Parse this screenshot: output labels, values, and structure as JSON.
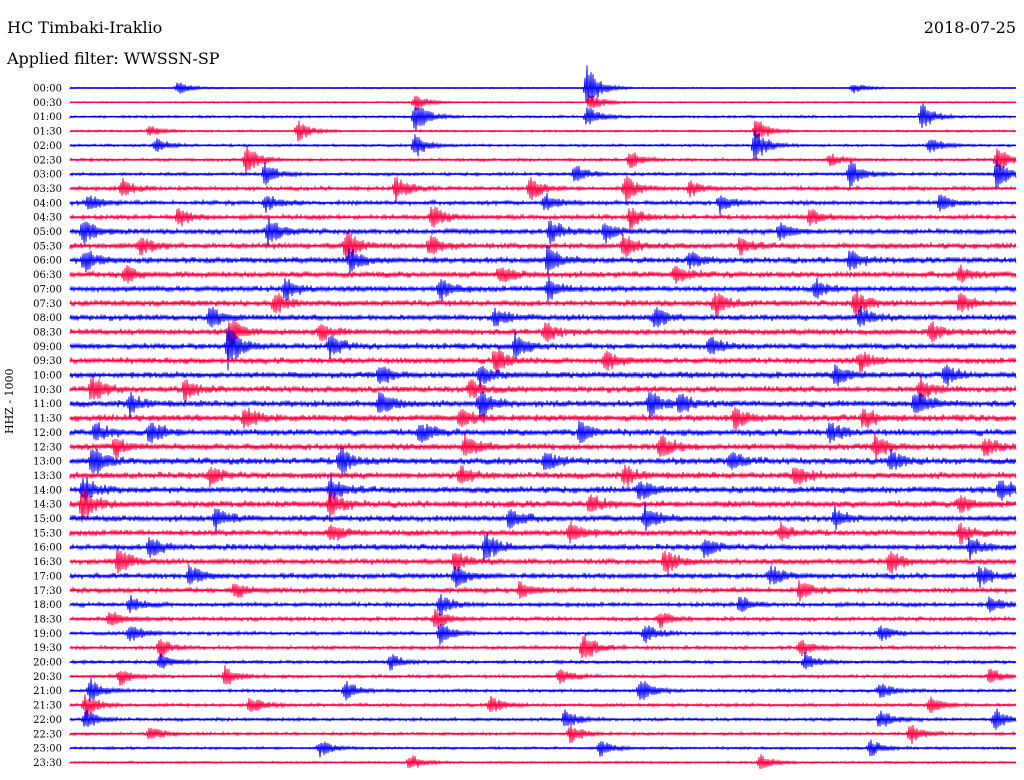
{
  "header": {
    "station": "HC Timbaki-Iraklio",
    "date": "2018-07-25",
    "filter": "Applied filter: WWSSN-SP"
  },
  "chart_data": {
    "type": "line",
    "title": "HC Timbaki-Iraklio",
    "ylabel": "HHZ - 1000",
    "row_labels": [
      "00:00",
      "00:30",
      "01:00",
      "01:30",
      "02:00",
      "02:30",
      "03:00",
      "03:30",
      "04:00",
      "04:30",
      "05:00",
      "05:30",
      "06:00",
      "06:30",
      "07:00",
      "07:30",
      "08:00",
      "08:30",
      "09:00",
      "09:30",
      "10:00",
      "10:30",
      "11:00",
      "11:30",
      "12:00",
      "12:30",
      "13:00",
      "13:30",
      "14:00",
      "14:30",
      "15:00",
      "15:30",
      "16:00",
      "16:30",
      "17:00",
      "17:30",
      "18:00",
      "18:30",
      "19:00",
      "19:30",
      "20:00",
      "20:30",
      "21:00",
      "21:30",
      "22:00",
      "22:30",
      "23:00",
      "23:30"
    ],
    "colors": [
      "#0000ff",
      "#ff0040"
    ],
    "row_amplitude": [
      0.2,
      0.2,
      0.35,
      0.3,
      0.35,
      0.4,
      0.45,
      0.55,
      0.6,
      0.65,
      0.75,
      0.8,
      0.85,
      0.85,
      0.85,
      0.85,
      0.85,
      0.85,
      0.85,
      0.85,
      0.9,
      0.9,
      0.95,
      0.95,
      0.95,
      0.95,
      0.95,
      0.95,
      0.95,
      0.95,
      0.9,
      0.85,
      0.85,
      0.8,
      0.75,
      0.7,
      0.6,
      0.55,
      0.5,
      0.5,
      0.45,
      0.45,
      0.45,
      0.45,
      0.45,
      0.4,
      0.35,
      0.3
    ],
    "bursts": [
      [
        [
          178,
          0.6
        ],
        [
          587,
          2.2
        ],
        [
          853,
          0.5
        ]
      ],
      [
        [
          415,
          0.8
        ],
        [
          590,
          1.0
        ]
      ],
      [
        [
          415,
          1.6
        ],
        [
          922,
          1.3
        ],
        [
          587,
          1.0
        ]
      ],
      [
        [
          298,
          1.0
        ],
        [
          756,
          1.2
        ],
        [
          150,
          0.5
        ]
      ],
      [
        [
          156,
          0.7
        ],
        [
          755,
          1.6
        ],
        [
          415,
          1.2
        ],
        [
          930,
          0.8
        ]
      ],
      [
        [
          246,
          1.5
        ],
        [
          630,
          0.9
        ],
        [
          830,
          0.6
        ],
        [
          997,
          1.3
        ]
      ],
      [
        [
          265,
          1.0
        ],
        [
          575,
          0.9
        ],
        [
          850,
          1.4
        ],
        [
          997,
          1.6
        ]
      ],
      [
        [
          122,
          0.9
        ],
        [
          396,
          1.2
        ],
        [
          530,
          1.2
        ],
        [
          625,
          1.3
        ],
        [
          690,
          0.8
        ]
      ],
      [
        [
          88,
          0.8
        ],
        [
          266,
          0.8
        ],
        [
          545,
          0.9
        ],
        [
          720,
          0.9
        ],
        [
          940,
          0.8
        ]
      ],
      [
        [
          178,
          1.0
        ],
        [
          432,
          1.2
        ],
        [
          630,
          1.0
        ],
        [
          810,
          0.8
        ]
      ],
      [
        [
          83,
          1.3
        ],
        [
          268,
          1.4
        ],
        [
          550,
          1.2
        ],
        [
          605,
          1.0
        ],
        [
          780,
          0.9
        ]
      ],
      [
        [
          140,
          0.9
        ],
        [
          346,
          1.5
        ],
        [
          430,
          1.0
        ],
        [
          624,
          1.2
        ],
        [
          740,
          0.8
        ]
      ],
      [
        [
          84,
          1.1
        ],
        [
          350,
          1.2
        ],
        [
          548,
          1.5
        ],
        [
          690,
          0.8
        ],
        [
          850,
          0.9
        ]
      ],
      [
        [
          125,
          0.9
        ],
        [
          500,
          0.9
        ],
        [
          675,
          1.0
        ],
        [
          960,
          0.8
        ]
      ],
      [
        [
          285,
          1.0
        ],
        [
          440,
          1.0
        ],
        [
          548,
          1.2
        ],
        [
          815,
          0.9
        ]
      ],
      [
        [
          275,
          1.0
        ],
        [
          715,
          1.2
        ],
        [
          855,
          1.3
        ],
        [
          960,
          0.9
        ]
      ],
      [
        [
          210,
          1.0
        ],
        [
          495,
          0.9
        ],
        [
          655,
          1.0
        ],
        [
          860,
          1.0
        ]
      ],
      [
        [
          230,
          1.3
        ],
        [
          320,
          0.8
        ],
        [
          545,
          0.9
        ],
        [
          930,
          0.9
        ]
      ],
      [
        [
          228,
          2.0
        ],
        [
          330,
          1.0
        ],
        [
          515,
          1.2
        ],
        [
          710,
          0.9
        ]
      ],
      [
        [
          495,
          1.3
        ],
        [
          605,
          1.0
        ],
        [
          860,
          1.0
        ]
      ],
      [
        [
          380,
          1.0
        ],
        [
          480,
          1.0
        ],
        [
          835,
          1.0
        ],
        [
          945,
          0.9
        ]
      ],
      [
        [
          92,
          1.4
        ],
        [
          185,
          1.0
        ],
        [
          470,
          1.0
        ],
        [
          920,
          1.1
        ]
      ],
      [
        [
          130,
          1.0
        ],
        [
          380,
          1.2
        ],
        [
          480,
          1.4
        ],
        [
          650,
          1.3
        ],
        [
          680,
          1.0
        ],
        [
          915,
          1.3
        ]
      ],
      [
        [
          245,
          1.0
        ],
        [
          460,
          1.0
        ],
        [
          735,
          1.0
        ],
        [
          863,
          1.0
        ]
      ],
      [
        [
          95,
          1.0
        ],
        [
          150,
          1.2
        ],
        [
          420,
          1.0
        ],
        [
          580,
          1.1
        ],
        [
          830,
          0.9
        ]
      ],
      [
        [
          115,
          1.0
        ],
        [
          465,
          1.3
        ],
        [
          660,
          1.2
        ],
        [
          875,
          1.2
        ],
        [
          985,
          0.9
        ]
      ],
      [
        [
          92,
          1.4
        ],
        [
          340,
          1.3
        ],
        [
          545,
          1.0
        ],
        [
          730,
          1.0
        ],
        [
          890,
          1.0
        ]
      ],
      [
        [
          210,
          1.0
        ],
        [
          460,
          1.0
        ],
        [
          625,
          1.0
        ],
        [
          795,
          1.0
        ]
      ],
      [
        [
          83,
          1.2
        ],
        [
          330,
          1.2
        ],
        [
          640,
          1.0
        ],
        [
          1000,
          1.2
        ]
      ],
      [
        [
          82,
          1.6
        ],
        [
          330,
          1.3
        ],
        [
          590,
          1.0
        ],
        [
          960,
          0.9
        ]
      ],
      [
        [
          215,
          1.0
        ],
        [
          510,
          1.0
        ],
        [
          645,
          1.3
        ],
        [
          835,
          0.9
        ]
      ],
      [
        [
          330,
          0.9
        ],
        [
          570,
          1.0
        ],
        [
          780,
          0.9
        ],
        [
          960,
          0.9
        ]
      ],
      [
        [
          150,
          1.0
        ],
        [
          485,
          1.5
        ],
        [
          705,
          1.0
        ],
        [
          970,
          1.0
        ]
      ],
      [
        [
          118,
          1.3
        ],
        [
          455,
          1.0
        ],
        [
          665,
          1.3
        ],
        [
          890,
          1.1
        ]
      ],
      [
        [
          190,
          1.0
        ],
        [
          455,
          1.2
        ],
        [
          770,
          1.0
        ],
        [
          980,
          1.0
        ]
      ],
      [
        [
          235,
          0.9
        ],
        [
          520,
          0.9
        ],
        [
          800,
          0.9
        ]
      ],
      [
        [
          130,
          0.8
        ],
        [
          440,
          0.9
        ],
        [
          740,
          0.8
        ],
        [
          990,
          0.8
        ]
      ],
      [
        [
          110,
          0.8
        ],
        [
          435,
          1.0
        ],
        [
          660,
          0.8
        ]
      ],
      [
        [
          130,
          0.9
        ],
        [
          440,
          1.1
        ],
        [
          645,
          0.9
        ],
        [
          880,
          0.8
        ]
      ],
      [
        [
          160,
          0.9
        ],
        [
          583,
          1.6
        ],
        [
          800,
          0.8
        ]
      ],
      [
        [
          160,
          0.8
        ],
        [
          390,
          0.8
        ],
        [
          805,
          0.8
        ]
      ],
      [
        [
          120,
          0.8
        ],
        [
          225,
          0.9
        ],
        [
          560,
          0.8
        ],
        [
          990,
          0.8
        ]
      ],
      [
        [
          90,
          1.1
        ],
        [
          345,
          1.0
        ],
        [
          640,
          1.1
        ],
        [
          880,
          0.8
        ]
      ],
      [
        [
          85,
          1.1
        ],
        [
          250,
          0.9
        ],
        [
          490,
          0.9
        ],
        [
          930,
          0.9
        ]
      ],
      [
        [
          85,
          1.0
        ],
        [
          565,
          1.0
        ],
        [
          880,
          1.0
        ],
        [
          995,
          1.1
        ]
      ],
      [
        [
          150,
          0.8
        ],
        [
          570,
          0.9
        ],
        [
          910,
          1.0
        ]
      ],
      [
        [
          320,
          0.8
        ],
        [
          600,
          0.8
        ],
        [
          870,
          0.8
        ]
      ],
      [
        [
          410,
          0.8
        ],
        [
          760,
          0.8
        ]
      ]
    ]
  }
}
